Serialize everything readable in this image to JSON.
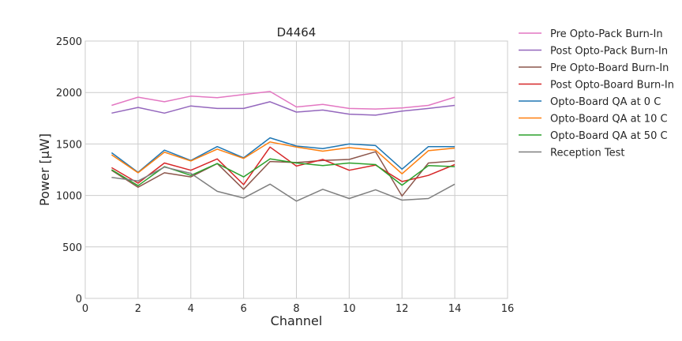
{
  "chart_data": {
    "type": "line",
    "title": "D4464",
    "xlabel": "Channel",
    "ylabel": "Power [μW]",
    "xlim": [
      0,
      16
    ],
    "ylim": [
      0,
      2500
    ],
    "xticks": [
      0,
      2,
      4,
      6,
      8,
      10,
      12,
      14,
      16
    ],
    "yticks": [
      0,
      500,
      1000,
      1500,
      2000,
      2500
    ],
    "grid": true,
    "legend_position": "outside-right-top",
    "x": [
      1,
      2,
      3,
      4,
      5,
      6,
      7,
      8,
      9,
      10,
      11,
      12,
      13,
      14
    ],
    "series": [
      {
        "name": "Pre Opto-Pack Burn-In",
        "color": "#e377c2",
        "values": [
          1875,
          1955,
          1910,
          1965,
          1950,
          1980,
          2010,
          1860,
          1885,
          1845,
          1840,
          1850,
          1875,
          1955
        ]
      },
      {
        "name": "Post Opto-Pack Burn-In",
        "color": "#9467bd",
        "values": [
          1800,
          1855,
          1800,
          1870,
          1845,
          1845,
          1910,
          1810,
          1830,
          1790,
          1780,
          1820,
          1845,
          1875
        ]
      },
      {
        "name": "Pre Opto-Board Burn-In",
        "color": "#8c564b",
        "values": [
          1245,
          1080,
          1220,
          1180,
          1310,
          1060,
          1330,
          1320,
          1340,
          1350,
          1425,
          995,
          1315,
          1335
        ]
      },
      {
        "name": "Post Opto-Board Burn-In",
        "color": "#d62728",
        "values": [
          1270,
          1120,
          1315,
          1245,
          1355,
          1105,
          1470,
          1285,
          1350,
          1245,
          1295,
          1135,
          1195,
          1300
        ]
      },
      {
        "name": "Opto-Board QA at 0 C",
        "color": "#1f77b4",
        "values": [
          1415,
          1225,
          1440,
          1340,
          1475,
          1365,
          1560,
          1480,
          1455,
          1500,
          1485,
          1255,
          1475,
          1475
        ]
      },
      {
        "name": "Opto-Board QA at 10 C",
        "color": "#ff7f0e",
        "values": [
          1395,
          1220,
          1420,
          1335,
          1450,
          1360,
          1520,
          1470,
          1430,
          1465,
          1440,
          1210,
          1435,
          1460
        ]
      },
      {
        "name": "Opto-Board QA at 50 C",
        "color": "#2ca02c",
        "values": [
          1250,
          1095,
          1280,
          1195,
          1310,
          1180,
          1355,
          1315,
          1290,
          1315,
          1300,
          1100,
          1290,
          1280
        ]
      },
      {
        "name": "Reception Test",
        "color": "#7f7f7f",
        "values": [
          1175,
          1140,
          1275,
          1215,
          1040,
          975,
          1110,
          945,
          1060,
          970,
          1055,
          955,
          970,
          1110
        ]
      }
    ]
  }
}
